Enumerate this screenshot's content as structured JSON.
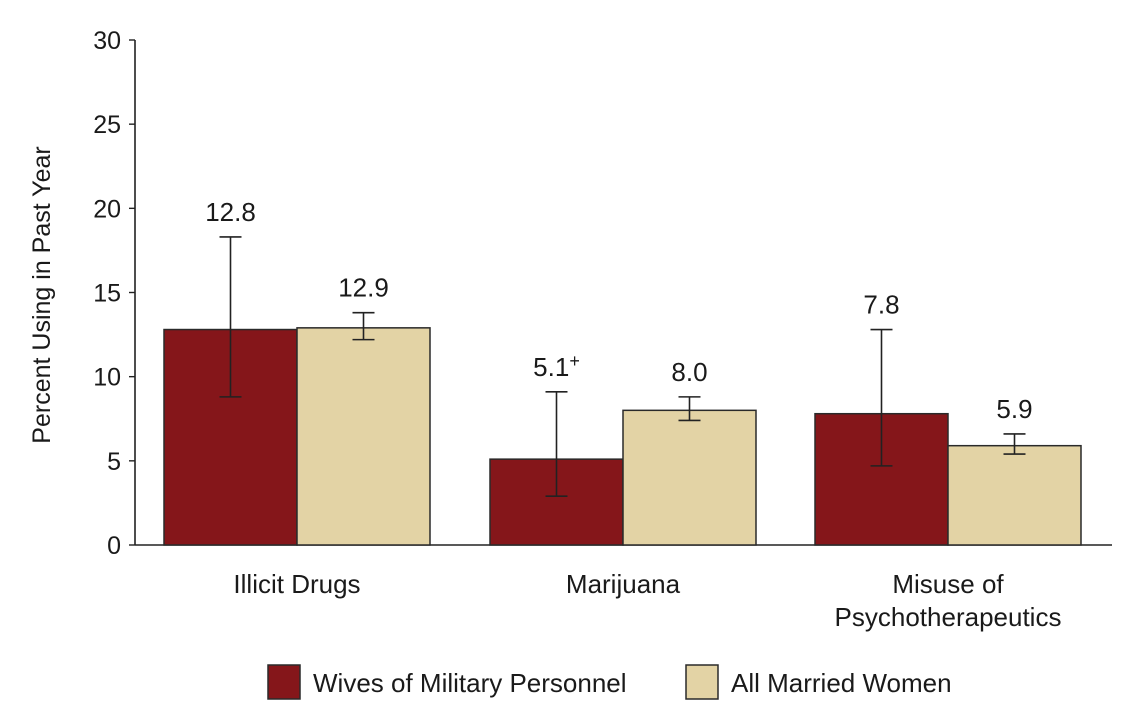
{
  "chart_data": {
    "type": "bar",
    "title": "",
    "xlabel": "",
    "ylabel": "Percent Using in Past Year",
    "ylim": [
      0,
      30
    ],
    "yticks": [
      0,
      5,
      10,
      15,
      20,
      25,
      30
    ],
    "grid": false,
    "legend_position": "bottom",
    "categories": [
      {
        "lines": [
          "Illicit Drugs"
        ]
      },
      {
        "lines": [
          "Marijuana"
        ]
      },
      {
        "lines": [
          "Misuse of",
          "Psychotherapeutics"
        ]
      }
    ],
    "series": [
      {
        "name": "Wives of Military Personnel",
        "color": "#85161a",
        "values": [
          12.8,
          5.1,
          7.8
        ],
        "labels": [
          "12.8",
          "5.1",
          "7.8"
        ],
        "label_superscripts": [
          "",
          "+",
          ""
        ],
        "error_low": [
          8.8,
          2.9,
          4.7
        ],
        "error_high": [
          18.3,
          9.1,
          12.8
        ]
      },
      {
        "name": "All Married Women",
        "color": "#e3d3a5",
        "values": [
          12.9,
          8.0,
          5.9
        ],
        "labels": [
          "12.9",
          "8.0",
          "5.9"
        ],
        "label_superscripts": [
          "",
          "",
          ""
        ],
        "error_low": [
          12.2,
          7.4,
          5.4
        ],
        "error_high": [
          13.8,
          8.8,
          6.6
        ]
      }
    ]
  }
}
